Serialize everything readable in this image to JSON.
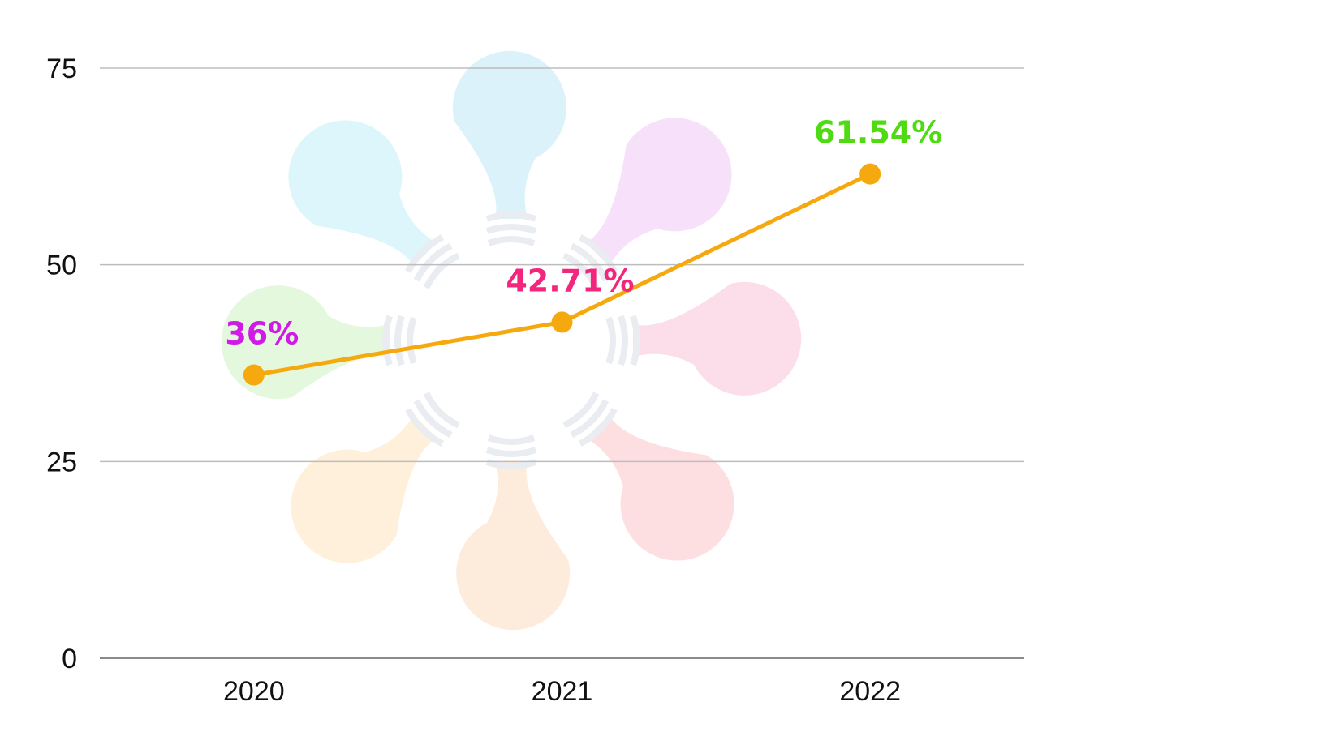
{
  "chart_data": {
    "type": "line",
    "title": "",
    "xlabel": "",
    "ylabel": "",
    "categories": [
      "2020",
      "2021",
      "2022"
    ],
    "series": [
      {
        "values": [
          36,
          42.71,
          61.54
        ],
        "color": "#F6A90E"
      }
    ],
    "data_labels": [
      {
        "text": "36%",
        "color": "#D11AE8"
      },
      {
        "text": "42.71%",
        "color": "#F2267D"
      },
      {
        "text": "61.54%",
        "color": "#4FDB12"
      }
    ],
    "y_ticks": [
      "0",
      "25",
      "50",
      "75"
    ],
    "ylim": [
      0,
      75
    ],
    "grid": true,
    "legend": "none",
    "watermark": "flower-of-lightbulbs-logo"
  }
}
